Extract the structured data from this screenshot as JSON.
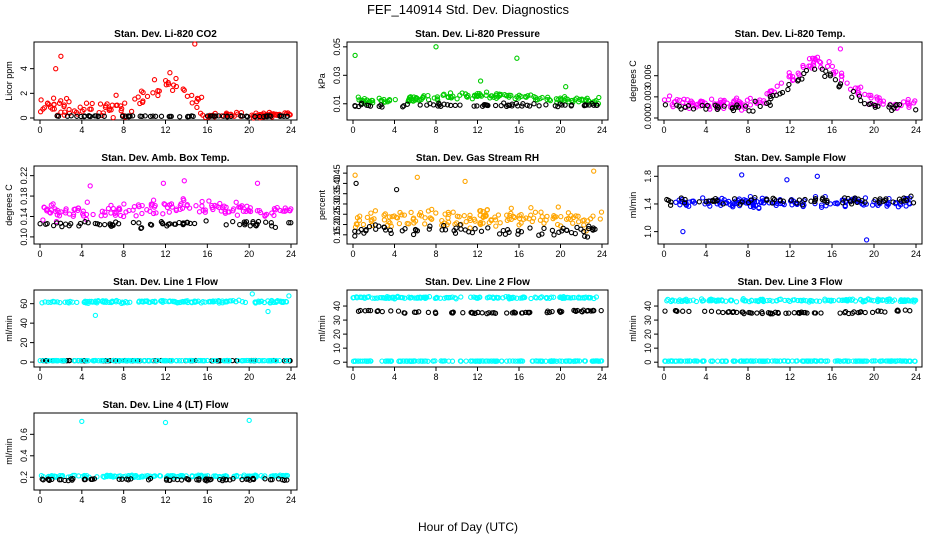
{
  "title": "FEF_140914  Std. Dev. Diagnostics",
  "xlabel": "Hour of Day (UTC)",
  "chart_data": [
    {
      "type": "scatter",
      "title": "Stan. Dev. Li-820 CO2",
      "ylabel": "Licor ppm",
      "xlim": [
        0,
        24
      ],
      "xticks": [
        0,
        4,
        8,
        12,
        16,
        20,
        24
      ],
      "ylim": [
        0,
        6
      ],
      "yticks": [
        "0",
        "2",
        "4"
      ],
      "colors": {
        "primary": "#ff0000",
        "secondary": "#000000"
      },
      "series": [
        {
          "role": "primary",
          "base": 0.8,
          "spread": 1.2,
          "bump": 2.0,
          "bumpCenter": 12.5,
          "bumpWidth": 2.5,
          "drop": {
            "after": 15.5,
            "to": 0.25
          },
          "outliers": [
            [
              2,
              5.0
            ],
            [
              14.8,
              6.2
            ],
            [
              1.5,
              4.0
            ],
            [
              13,
              3.2
            ]
          ]
        },
        {
          "role": "secondary",
          "base": 0.15,
          "spread": 0.08
        }
      ]
    },
    {
      "type": "scatter",
      "title": "Stan. Dev. Li-820 Pressure",
      "ylabel": "kPa",
      "xlim": [
        0,
        24
      ],
      "xticks": [
        0,
        4,
        8,
        12,
        16,
        20,
        24
      ],
      "ylim": [
        0,
        0.052
      ],
      "yticks": [
        "0.01",
        "0.03",
        "0.05"
      ],
      "colors": {
        "primary": "#00cc00",
        "secondary": "#000000"
      },
      "series": [
        {
          "role": "primary",
          "base": 0.012,
          "spread": 0.003,
          "bump": 0.004,
          "bumpCenter": 12,
          "bumpWidth": 6,
          "outliers": [
            [
              0.2,
              0.044
            ],
            [
              8,
              0.05
            ],
            [
              15.8,
              0.042
            ],
            [
              12.3,
              0.026
            ],
            [
              20.5,
              0.022
            ]
          ]
        },
        {
          "role": "secondary",
          "base": 0.009,
          "spread": 0.002
        }
      ]
    },
    {
      "type": "scatter",
      "title": "Stan. Dev. Li-820 Temp.",
      "ylabel": "degrees C",
      "xlim": [
        0,
        24
      ],
      "xticks": [
        0,
        4,
        8,
        12,
        16,
        20,
        24
      ],
      "ylim": [
        0,
        0.0105
      ],
      "yticks": [
        "0.000",
        "0.003",
        "0.006"
      ],
      "colors": {
        "primary": "#ff00ff",
        "secondary": "#000000"
      },
      "series": [
        {
          "role": "primary",
          "base": 0.002,
          "spread": 0.0012,
          "bump": 0.006,
          "bumpCenter": 14.5,
          "bumpWidth": 3.5,
          "outliers": [
            [
              16.8,
              0.0098
            ]
          ]
        },
        {
          "role": "secondary",
          "base": 0.0015,
          "spread": 0.001,
          "bump": 0.005,
          "bumpCenter": 14.5,
          "bumpWidth": 3.5
        }
      ]
    },
    {
      "type": "scatter",
      "title": "Stan. Dev. Amb. Box Temp.",
      "ylabel": "degrees C",
      "xlim": [
        0,
        24
      ],
      "xticks": [
        0,
        4,
        8,
        12,
        16,
        20,
        24
      ],
      "ylim": [
        0.09,
        0.235
      ],
      "yticks": [
        "0.10",
        "0.14",
        "0.18",
        "0.22"
      ],
      "colors": {
        "primary": "#ff00ff",
        "secondary": "#000000"
      },
      "series": [
        {
          "role": "primary",
          "base": 0.148,
          "spread": 0.022,
          "bump": 0.012,
          "bumpCenter": 13,
          "bumpWidth": 5,
          "outliers": [
            [
              4.8,
              0.2
            ],
            [
              11.8,
              0.205
            ],
            [
              13.8,
              0.21
            ],
            [
              20.8,
              0.205
            ]
          ]
        },
        {
          "role": "secondary",
          "base": 0.125,
          "spread": 0.01
        }
      ]
    },
    {
      "type": "scatter",
      "title": "Stan. Dev. Gas Stream RH",
      "ylabel": "percent",
      "xlim": [
        0,
        24
      ],
      "xticks": [
        0,
        4,
        8,
        12,
        16,
        20,
        24
      ],
      "ylim": [
        0.115,
        0.475
      ],
      "yticks": [
        "0.15",
        "0.20",
        "0.25",
        "0.30",
        "0.35",
        "0.40",
        "0.45"
      ],
      "colors": {
        "primary": "#ffa500",
        "secondary": "#000000"
      },
      "series": [
        {
          "role": "primary",
          "base": 0.23,
          "spread": 0.07,
          "outliers": [
            [
              0.2,
              0.44
            ],
            [
              6.2,
              0.43
            ],
            [
              10.8,
              0.41
            ],
            [
              23.2,
              0.46
            ]
          ]
        },
        {
          "role": "secondary",
          "base": 0.17,
          "spread": 0.04,
          "outliers": [
            [
              0.3,
              0.4
            ],
            [
              4.2,
              0.37
            ]
          ]
        }
      ]
    },
    {
      "type": "scatter",
      "title": "Stan. Dev. Sample Flow",
      "ylabel": "ml/min",
      "xlim": [
        0,
        24
      ],
      "xticks": [
        0,
        4,
        8,
        12,
        16,
        20,
        24
      ],
      "ylim": [
        0.85,
        1.92
      ],
      "yticks": [
        "1.0",
        "1.4",
        "1.8"
      ],
      "colors": {
        "primary": "#0000ff",
        "secondary": "#000000"
      },
      "series": [
        {
          "role": "primary",
          "base": 1.42,
          "spread": 0.1,
          "outliers": [
            [
              7.4,
              1.82
            ],
            [
              11.7,
              1.75
            ],
            [
              14.6,
              1.8
            ],
            [
              19.3,
              0.88
            ],
            [
              1.8,
              1.0
            ]
          ]
        },
        {
          "role": "secondary",
          "base": 1.45,
          "spread": 0.08
        }
      ]
    },
    {
      "type": "scatter",
      "title": "Stan. Dev. Line 1 Flow",
      "ylabel": "ml/min",
      "xlim": [
        0,
        24
      ],
      "xticks": [
        0,
        4,
        8,
        12,
        16,
        20,
        24
      ],
      "ylim": [
        -3,
        72
      ],
      "yticks": [
        "0",
        "20",
        "40",
        "60"
      ],
      "colors": {
        "primary": "#00ffff",
        "secondary": "#000000"
      },
      "series": [
        {
          "role": "primary",
          "base": 62,
          "spread": 2,
          "outliers": [
            [
              5.3,
              48
            ],
            [
              21.8,
              52
            ],
            [
              23.8,
              68
            ],
            [
              20.3,
              70
            ]
          ]
        },
        {
          "role": "secondary",
          "base": 1.5,
          "spread": 0.2
        },
        {
          "role": "primary",
          "base": 1.5,
          "spread": 0.2
        }
      ]
    },
    {
      "type": "scatter",
      "title": "Stan. Dev. Line 2 Flow",
      "ylabel": "ml/min",
      "xlim": [
        0,
        24
      ],
      "xticks": [
        0,
        4,
        8,
        12,
        16,
        20,
        24
      ],
      "ylim": [
        -2,
        50
      ],
      "yticks": [
        "0",
        "10",
        "20",
        "30",
        "40"
      ],
      "colors": {
        "primary": "#00ffff",
        "secondary": "#000000"
      },
      "series": [
        {
          "role": "primary",
          "base": 46,
          "spread": 1
        },
        {
          "role": "secondary",
          "base": 37,
          "spread": 1,
          "trend": -2
        },
        {
          "role": "primary",
          "base": 0.8,
          "spread": 0.2
        }
      ]
    },
    {
      "type": "scatter",
      "title": "Stan. Dev. Line 3 Flow",
      "ylabel": "ml/min",
      "xlim": [
        0,
        24
      ],
      "xticks": [
        0,
        4,
        8,
        12,
        16,
        20,
        24
      ],
      "ylim": [
        -2,
        50
      ],
      "yticks": [
        "0",
        "10",
        "20",
        "30",
        "40"
      ],
      "colors": {
        "primary": "#00ffff",
        "secondary": "#000000"
      },
      "series": [
        {
          "role": "primary",
          "base": 44,
          "spread": 1.5
        },
        {
          "role": "secondary",
          "base": 37,
          "spread": 1,
          "trend": -2
        },
        {
          "role": "primary",
          "base": 0.8,
          "spread": 0.2
        }
      ]
    },
    {
      "type": "scatter",
      "title": "Stan. Dev. Line 4 (LT) Flow",
      "ylabel": "ml/min",
      "xlim": [
        0,
        24
      ],
      "xticks": [
        0,
        4,
        8,
        12,
        16,
        20,
        24
      ],
      "ylim": [
        0.1,
        0.78
      ],
      "yticks": [
        "0.2",
        "0.4",
        "0.6"
      ],
      "colors": {
        "primary": "#00ffff",
        "secondary": "#000000"
      },
      "series": [
        {
          "role": "primary",
          "base": 0.21,
          "spread": 0.015,
          "outliers": [
            [
              4,
              0.72
            ],
            [
              12,
              0.71
            ],
            [
              20,
              0.73
            ]
          ]
        },
        {
          "role": "secondary",
          "base": 0.18,
          "spread": 0.015
        }
      ]
    }
  ]
}
